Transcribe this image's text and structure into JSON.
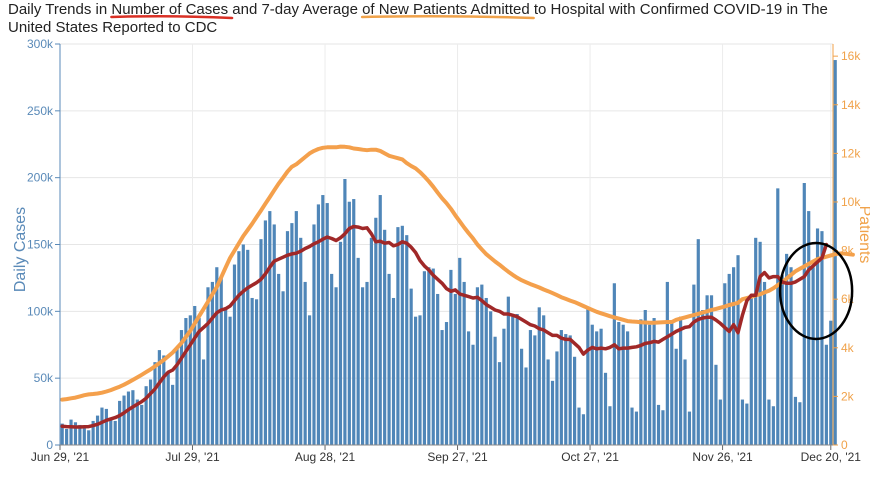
{
  "title": {
    "prefix": "Daily Trends in ",
    "highlight1": "Number of Cases",
    "middle": " and 7-day Average ",
    "highlight2": "of New Patients Admitted",
    "suffix": " to Hospital with Confirmed COVID-19 in The United States Reported to CDC"
  },
  "colors": {
    "bars": "#4f86b8",
    "avg_cases_line": "#a02828",
    "patients_line": "#f4a04c",
    "left_axis": "#5a8ab8",
    "right_axis": "#f0a24a",
    "underline1": "#d93025",
    "underline2": "#f0a24a",
    "circle_annotation": "#000000"
  },
  "chart_data": {
    "type": "bar",
    "title": "Daily Trends in Number of Cases and 7-day Average of New Patients Admitted to Hospital with Confirmed COVID-19 in The United States Reported to CDC",
    "ylabel": "Daily Cases",
    "y2label": "Patients",
    "ylim": [
      0,
      300000
    ],
    "y2lim": [
      0,
      16500
    ],
    "y_ticks": [
      "0",
      "50k",
      "100k",
      "150k",
      "200k",
      "250k",
      "300k"
    ],
    "y2_ticks": [
      "0",
      "2k",
      "4k",
      "6k",
      "8k",
      "10k",
      "12k",
      "14k",
      "16k"
    ],
    "x_tick_labels": [
      "Jun 29, '21",
      "Jul 29, '21",
      "Aug 28, '21",
      "Sep 27, '21",
      "Oct 27, '21",
      "Nov 26, '21",
      "Dec 20, '21"
    ],
    "x_tick_day_index": [
      0,
      30,
      60,
      90,
      120,
      150,
      174
    ],
    "grid": true,
    "series": [
      {
        "name": "Daily Cases",
        "axis": "left",
        "kind": "bar",
        "values": [
          16000,
          12000,
          19000,
          17000,
          15000,
          13000,
          11000,
          18000,
          22000,
          28000,
          27000,
          20000,
          18000,
          33000,
          37000,
          40000,
          41000,
          34000,
          30000,
          44000,
          49000,
          62000,
          71000,
          67000,
          55000,
          45000,
          72000,
          86000,
          95000,
          97000,
          104000,
          95000,
          64000,
          118000,
          122000,
          133000,
          125000,
          103000,
          96000,
          135000,
          145000,
          150000,
          146000,
          110000,
          109000,
          154000,
          168000,
          175000,
          165000,
          128000,
          115000,
          160000,
          166000,
          175000,
          155000,
          122000,
          97000,
          165000,
          180000,
          187000,
          181000,
          128000,
          118000,
          152000,
          199000,
          182000,
          184000,
          140000,
          118000,
          122000,
          155000,
          170000,
          187000,
          161000,
          128000,
          110000,
          163000,
          164000,
          157000,
          117000,
          96000,
          97000,
          130000,
          133000,
          132000,
          113000,
          86000,
          92000,
          131000,
          113000,
          140000,
          122000,
          85000,
          75000,
          118000,
          120000,
          110000,
          100000,
          81000,
          62000,
          87000,
          111000,
          96000,
          98000,
          72000,
          58000,
          86000,
          82000,
          103000,
          97000,
          64000,
          48000,
          70000,
          86000,
          83000,
          82000,
          66000,
          28000,
          23000,
          102000,
          90000,
          85000,
          87000,
          54000,
          29000,
          121000,
          92000,
          90000,
          85000,
          28000,
          25000,
          94000,
          101000,
          90000,
          95000,
          30000,
          26000,
          122000,
          92000,
          72000,
          96000,
          64000,
          25000,
          120000,
          154000,
          101000,
          112000,
          112000,
          60000,
          34000,
          121000,
          128000,
          133000,
          142000,
          34000,
          31000,
          111000,
          155000,
          152000,
          122000,
          34000,
          29000,
          192000,
          127000,
          143000,
          133000,
          36000,
          32000,
          196000,
          175000,
          133000,
          162000,
          160000,
          75000,
          93000,
          288000
        ]
      },
      {
        "name": "7-day Average Cases",
        "axis": "left",
        "kind": "line",
        "values": [
          14000,
          13800,
          13600,
          13500,
          13500,
          13600,
          13800,
          14500,
          15500,
          17000,
          18500,
          19500,
          20500,
          22000,
          24000,
          26500,
          28500,
          30500,
          32500,
          35000,
          38500,
          42000,
          46500,
          51000,
          54500,
          56000,
          60000,
          65000,
          70000,
          75000,
          80000,
          85000,
          88000,
          91000,
          95000,
          99000,
          101000,
          102000,
          104000,
          108000,
          112000,
          115000,
          117500,
          119500,
          121500,
          124000,
          128000,
          133000,
          137500,
          139000,
          140500,
          142000,
          143000,
          143500,
          145000,
          147000,
          148500,
          150500,
          152000,
          154000,
          155500,
          154500,
          153000,
          155000,
          158000,
          162000,
          163500,
          163000,
          162000,
          162500,
          158000,
          152000,
          152500,
          151000,
          151500,
          149000,
          150000,
          152000,
          151000,
          148000,
          144000,
          138000,
          134000,
          131000,
          127000,
          124000,
          121000,
          117000,
          115000,
          116000,
          113000,
          112000,
          111000,
          110000,
          110500,
          108000,
          105000,
          103000,
          101000,
          100000,
          98000,
          98000,
          97000,
          96000,
          94000,
          92000,
          90000,
          89000,
          87000,
          86000,
          84000,
          82000,
          82000,
          80000,
          79000,
          79000,
          76000,
          73000,
          68000,
          71000,
          73000,
          72000,
          72500,
          72000,
          73000,
          75000,
          72000,
          72500,
          72500,
          73000,
          73500,
          74500,
          76000,
          76500,
          77500,
          77000,
          79000,
          81000,
          83000,
          85000,
          86500,
          88000,
          88500,
          92000,
          94000,
          95000,
          95500,
          95500,
          93500,
          91000,
          88000,
          85000,
          90000,
          84000,
          97000,
          108000,
          112000,
          112000,
          126000,
          129000,
          125000,
          126000,
          126000,
          122000,
          121000,
          121000,
          122000,
          124000,
          126000,
          131000,
          134000,
          137000,
          140000,
          150000
        ]
      },
      {
        "name": "Patients",
        "axis": "right",
        "kind": "line",
        "values": [
          1870,
          1890,
          1920,
          1950,
          2000,
          2050,
          2080,
          2100,
          2120,
          2150,
          2200,
          2260,
          2330,
          2400,
          2480,
          2580,
          2680,
          2780,
          2890,
          3000,
          3110,
          3240,
          3370,
          3500,
          3650,
          3800,
          4000,
          4200,
          4450,
          4700,
          5000,
          5300,
          5600,
          5900,
          6200,
          6500,
          6900,
          7300,
          7700,
          8000,
          8300,
          8600,
          8850,
          9100,
          9380,
          9650,
          9930,
          10200,
          10480,
          10750,
          11000,
          11250,
          11450,
          11550,
          11700,
          11850,
          12000,
          12100,
          12180,
          12230,
          12250,
          12250,
          12250,
          12280,
          12270,
          12250,
          12200,
          12180,
          12150,
          12130,
          12150,
          12150,
          12100,
          12000,
          11900,
          11850,
          11800,
          11750,
          11600,
          11480,
          11380,
          11230,
          11050,
          10850,
          10630,
          10380,
          10150,
          9950,
          9720,
          9450,
          9200,
          8950,
          8720,
          8500,
          8250,
          8050,
          7850,
          7700,
          7550,
          7420,
          7270,
          7130,
          7000,
          6880,
          6780,
          6700,
          6620,
          6550,
          6480,
          6400,
          6330,
          6250,
          6170,
          6080,
          6010,
          5940,
          5880,
          5800,
          5720,
          5640,
          5560,
          5480,
          5420,
          5360,
          5300,
          5250,
          5200,
          5150,
          5100,
          5080,
          5070,
          5050,
          5040,
          5030,
          5030,
          5040,
          5050,
          5060,
          5060,
          5150,
          5200,
          5250,
          5300,
          5350,
          5400,
          5450,
          5500,
          5560,
          5600,
          5650,
          5700,
          5760,
          5800,
          5850,
          6000,
          6050,
          6100,
          6160,
          6200,
          6280,
          6350,
          6450,
          6580,
          6700,
          6850,
          7000,
          7150,
          7250,
          7350,
          7450,
          7550,
          7650,
          7700,
          7750,
          7800,
          7850,
          7880,
          7880,
          7850,
          7830
        ]
      }
    ],
    "annotations": [
      {
        "kind": "ellipse",
        "note": "circled recent surge around Dec 2021"
      }
    ]
  }
}
